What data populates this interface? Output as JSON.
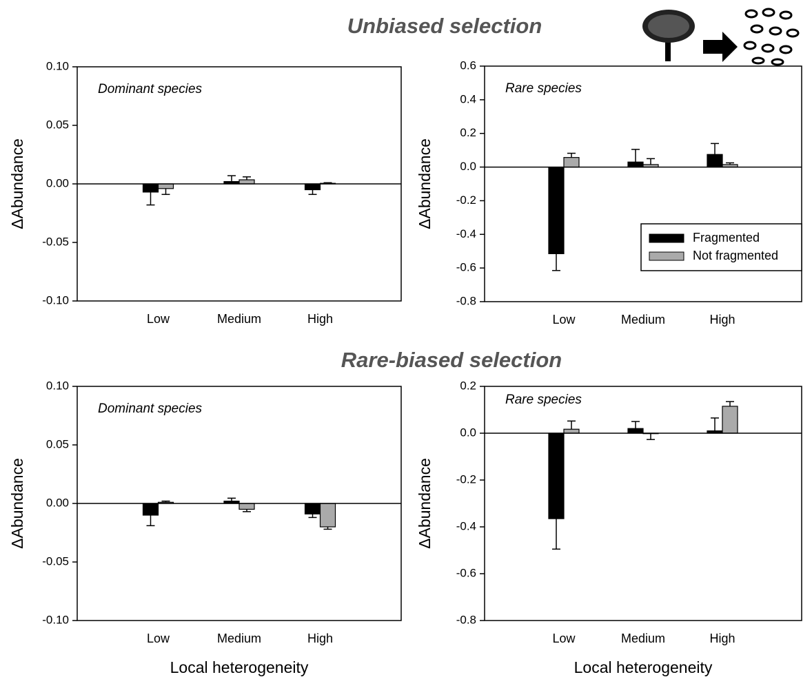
{
  "headings": [
    "Unbiased selection",
    "Rare-biased selection"
  ],
  "chart_data": [
    {
      "type": "bar",
      "ylabel": "ΔAbundance",
      "annotation": "Dominant species",
      "categories": [
        "Low",
        "Medium",
        "High"
      ],
      "ylim": [
        -0.1,
        0.1
      ],
      "yticks": [
        {
          "value": -0.1,
          "label": "-0.10"
        },
        {
          "value": -0.05,
          "label": "-0.05"
        },
        {
          "value": 0,
          "label": "0.00"
        },
        {
          "value": 0.05,
          "label": "0.05"
        },
        {
          "value": 0.1,
          "label": "0.10"
        }
      ],
      "series": [
        {
          "color": "#000000",
          "values": [
            -0.007,
            0.002,
            -0.005
          ],
          "errors": [
            0.011,
            0.005,
            0.004
          ]
        },
        {
          "color": "#aaaaaa",
          "values": [
            -0.004,
            0.0035,
            0.0005
          ],
          "errors": [
            0.005,
            0.0025,
            0.0005
          ]
        }
      ]
    },
    {
      "type": "bar",
      "ylabel": "ΔAbundance",
      "annotation": "Rare species",
      "categories": [
        "Low",
        "Medium",
        "High"
      ],
      "ylim": [
        -0.8,
        0.6
      ],
      "yticks": [
        -0.8,
        -0.6,
        -0.4,
        -0.2,
        {
          "value": 0,
          "label": "0.0"
        },
        0.2,
        0.4,
        0.6
      ],
      "legend": "lower right",
      "series": [
        {
          "name": "Fragmented",
          "color": "#000000",
          "values": [
            -0.515,
            0.03,
            0.075
          ],
          "errors": [
            0.1,
            0.075,
            0.065
          ]
        },
        {
          "name": "Not fragmented",
          "color": "#aaaaaa",
          "values": [
            0.057,
            0.015,
            0.015
          ],
          "errors": [
            0.025,
            0.035,
            0.01
          ]
        }
      ]
    },
    {
      "type": "bar",
      "ylabel": "ΔAbundance",
      "annotation": "Dominant species",
      "xlabel": "Local heterogeneity",
      "categories": [
        "Low",
        "Medium",
        "High"
      ],
      "ylim": [
        -0.1,
        0.1
      ],
      "yticks": [
        {
          "value": -0.1,
          "label": "-0.10"
        },
        {
          "value": -0.05,
          "label": "-0.05"
        },
        {
          "value": 0,
          "label": "0.00"
        },
        {
          "value": 0.05,
          "label": "0.05"
        },
        {
          "value": 0.1,
          "label": "0.10"
        }
      ],
      "series": [
        {
          "color": "#000000",
          "values": [
            -0.01,
            0.002,
            -0.009
          ],
          "errors": [
            0.009,
            0.0025,
            0.003
          ]
        },
        {
          "color": "#aaaaaa",
          "values": [
            0.001,
            -0.005,
            -0.02
          ],
          "errors": [
            0.001,
            0.002,
            0.002
          ]
        }
      ]
    },
    {
      "type": "bar",
      "ylabel": "ΔAbundance",
      "annotation": "Rare species",
      "xlabel": "Local heterogeneity",
      "categories": [
        "Low",
        "Medium",
        "High"
      ],
      "ylim": [
        -0.8,
        0.2
      ],
      "yticks": [
        -0.8,
        -0.6,
        -0.4,
        -0.2,
        {
          "value": 0,
          "label": "0.0"
        },
        0.2
      ],
      "series": [
        {
          "color": "#000000",
          "values": [
            -0.365,
            0.02,
            0.01
          ],
          "errors": [
            0.13,
            0.03,
            0.055
          ]
        },
        {
          "color": "#aaaaaa",
          "values": [
            0.017,
            -0.002,
            0.115
          ],
          "errors": [
            0.035,
            0.025,
            0.02
          ]
        }
      ]
    }
  ]
}
